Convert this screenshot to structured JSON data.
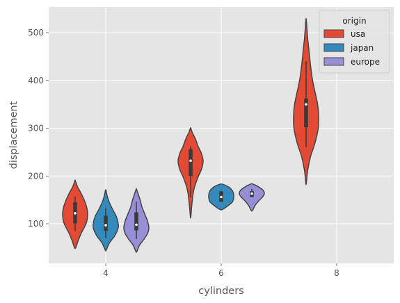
{
  "chart_data": {
    "type": "violin",
    "title": "",
    "xlabel": "cylinders",
    "ylabel": "displacement",
    "categories": [
      "4",
      "6",
      "8"
    ],
    "ylim": [
      20,
      550
    ],
    "yticks": [
      100,
      200,
      300,
      400,
      500
    ],
    "grid": true,
    "legend": {
      "title": "origin",
      "position": "top-right"
    },
    "series": [
      {
        "name": "usa",
        "color": "#e24a33",
        "groups": [
          {
            "category": "4",
            "min": 85,
            "q1": 101,
            "median": 122,
            "q3": 145,
            "max": 157,
            "extent": [
              50,
              190
            ],
            "profile": [
              [
                50,
                0.05
              ],
              [
                65,
                0.25
              ],
              [
                80,
                0.48
              ],
              [
                95,
                0.78
              ],
              [
                105,
                0.93
              ],
              [
                120,
                1.0
              ],
              [
                135,
                0.92
              ],
              [
                150,
                0.72
              ],
              [
                165,
                0.45
              ],
              [
                178,
                0.18
              ],
              [
                190,
                0.02
              ]
            ]
          },
          {
            "category": "6",
            "min": 155,
            "q1": 200,
            "median": 232,
            "q3": 256,
            "max": 262,
            "extent": [
              115,
              300
            ],
            "profile": [
              [
                115,
                0.02
              ],
              [
                140,
                0.1
              ],
              [
                170,
                0.25
              ],
              [
                195,
                0.55
              ],
              [
                215,
                0.88
              ],
              [
                232,
                1.0
              ],
              [
                248,
                0.85
              ],
              [
                262,
                0.6
              ],
              [
                278,
                0.38
              ],
              [
                292,
                0.12
              ],
              [
                300,
                0.02
              ]
            ]
          },
          {
            "category": "8",
            "min": 260,
            "q1": 302,
            "median": 350,
            "q3": 362,
            "max": 440,
            "extent": [
              185,
              528
            ],
            "profile": [
              [
                185,
                0.02
              ],
              [
                210,
                0.12
              ],
              [
                240,
                0.35
              ],
              [
                270,
                0.72
              ],
              [
                300,
                0.97
              ],
              [
                325,
                1.0
              ],
              [
                350,
                0.92
              ],
              [
                375,
                0.72
              ],
              [
                400,
                0.52
              ],
              [
                430,
                0.36
              ],
              [
                460,
                0.24
              ],
              [
                490,
                0.12
              ],
              [
                515,
                0.05
              ],
              [
                528,
                0.01
              ]
            ]
          }
        ]
      },
      {
        "name": "japan",
        "color": "#348abd",
        "groups": [
          {
            "category": "4",
            "min": 70,
            "q1": 85,
            "median": 97,
            "q3": 117,
            "max": 133,
            "extent": [
              45,
              170
            ],
            "profile": [
              [
                45,
                0.04
              ],
              [
                60,
                0.3
              ],
              [
                75,
                0.72
              ],
              [
                90,
                0.98
              ],
              [
                100,
                1.0
              ],
              [
                115,
                0.85
              ],
              [
                130,
                0.55
              ],
              [
                145,
                0.28
              ],
              [
                158,
                0.12
              ],
              [
                170,
                0.02
              ]
            ]
          },
          {
            "category": "6",
            "min": 146,
            "q1": 146,
            "median": 156,
            "q3": 168,
            "max": 168,
            "extent": [
              130,
              183
            ],
            "profile": [
              [
                130,
                0.1
              ],
              [
                138,
                0.55
              ],
              [
                146,
                0.9
              ],
              [
                156,
                1.0
              ],
              [
                166,
                0.95
              ],
              [
                175,
                0.7
              ],
              [
                180,
                0.38
              ],
              [
                183,
                0.08
              ]
            ]
          }
        ]
      },
      {
        "name": "europe",
        "color": "#988ed5",
        "groups": [
          {
            "category": "4",
            "min": 68,
            "q1": 86,
            "median": 98,
            "q3": 124,
            "max": 146,
            "extent": [
              42,
              172
            ],
            "profile": [
              [
                42,
                0.04
              ],
              [
                55,
                0.25
              ],
              [
                68,
                0.62
              ],
              [
                80,
                0.9
              ],
              [
                92,
                1.0
              ],
              [
                105,
                0.9
              ],
              [
                120,
                0.68
              ],
              [
                135,
                0.45
              ],
              [
                150,
                0.3
              ],
              [
                162,
                0.15
              ],
              [
                172,
                0.02
              ]
            ]
          },
          {
            "category": "6",
            "min": 156,
            "q1": 156,
            "median": 163,
            "q3": 168,
            "max": 173,
            "extent": [
              128,
              183
            ],
            "profile": [
              [
                128,
                0.06
              ],
              [
                138,
                0.25
              ],
              [
                148,
                0.55
              ],
              [
                156,
                0.85
              ],
              [
                163,
                1.0
              ],
              [
                170,
                0.9
              ],
              [
                177,
                0.55
              ],
              [
                183,
                0.1
              ]
            ]
          }
        ]
      }
    ]
  }
}
